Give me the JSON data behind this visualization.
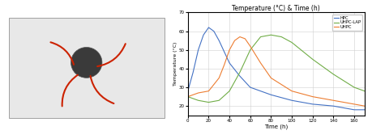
{
  "title": "Temperature (°C) & Time (h)",
  "xlabel": "Time (h)",
  "ylabel": "Temperature (°C)",
  "legend": [
    "HPC",
    "UHPC-LAP",
    "UHPC"
  ],
  "colors": [
    "#4472C4",
    "#70AD47",
    "#ED7D31"
  ],
  "x_ticks": [
    0,
    20,
    40,
    60,
    80,
    100,
    120,
    140,
    160
  ],
  "ylim": [
    15,
    70
  ],
  "xlim": [
    0,
    170
  ],
  "hpc_x": [
    0,
    5,
    10,
    15,
    20,
    25,
    30,
    40,
    50,
    60,
    80,
    100,
    120,
    140,
    160,
    170
  ],
  "hpc_y": [
    28,
    38,
    50,
    58,
    62,
    60,
    55,
    43,
    36,
    30,
    26,
    23,
    21,
    20,
    18,
    18
  ],
  "uhpc_lap_x": [
    0,
    5,
    10,
    20,
    30,
    40,
    50,
    60,
    70,
    80,
    90,
    100,
    120,
    140,
    160,
    170
  ],
  "uhpc_lap_y": [
    25,
    24,
    23,
    22,
    23,
    28,
    38,
    50,
    57,
    58,
    57,
    54,
    45,
    37,
    30,
    28
  ],
  "uhpc_x": [
    0,
    5,
    10,
    20,
    30,
    35,
    40,
    45,
    50,
    55,
    60,
    70,
    80,
    100,
    120,
    140,
    160,
    170
  ],
  "uhpc_y": [
    25,
    26,
    27,
    28,
    35,
    42,
    50,
    55,
    57,
    56,
    52,
    43,
    35,
    28,
    25,
    23,
    21,
    20
  ],
  "photo_bg_color": "#8a9a6a",
  "photo_box_color": "#e8e8e8",
  "chart_bg": "#ffffff",
  "grid_color": "#d0d0d0"
}
